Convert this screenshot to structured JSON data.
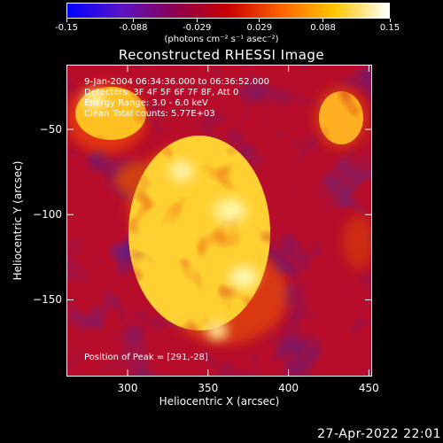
{
  "colorbar": {
    "tick_labels": [
      "-0.15",
      "-0.088",
      "-0.029",
      "0.029",
      "0.088",
      "0.15"
    ],
    "tick_values": [
      -0.15,
      -0.088,
      -0.029,
      0.029,
      0.088,
      0.15
    ],
    "range": [
      -0.15,
      0.15
    ],
    "unit_label": "(photons cm⁻² s⁻¹ asec⁻²)",
    "colors": [
      "#0000ff",
      "#5a14c8",
      "#8c0050",
      "#c80000",
      "#ff6400",
      "#ffc800",
      "#ffffff"
    ]
  },
  "chart_data": {
    "type": "heatmap",
    "title": "Reconstructed RHESSI Image",
    "xlabel": "Heliocentric X (arcsec)",
    "ylabel": "Heliocentric Y (arcsec)",
    "xlim": [
      262,
      452
    ],
    "ylim": [
      -195,
      -12
    ],
    "xticks": [
      300,
      350,
      400,
      450
    ],
    "yticks": [
      -50,
      -100,
      -150
    ],
    "xtick_labels": [
      "300",
      "350",
      "400",
      "450"
    ],
    "ytick_labels": [
      "−50",
      "−100",
      "−150"
    ],
    "peak": [
      291,
      -28
    ],
    "annotations": {
      "time": "9-Jan-2004 06:34:36.000 to 06:36:52.000",
      "detectors": "Detectors: 3F 4F 5F 6F 7F 8F, Att 0",
      "energy": "Energy Range: 3.0 - 6.0 keV",
      "clean": "Clean    Total counts: 5.77E+03",
      "peak_text": "Position of Peak = [291,-28]"
    }
  },
  "footer": {
    "timestamp": "27-Apr-2022 22:01"
  }
}
